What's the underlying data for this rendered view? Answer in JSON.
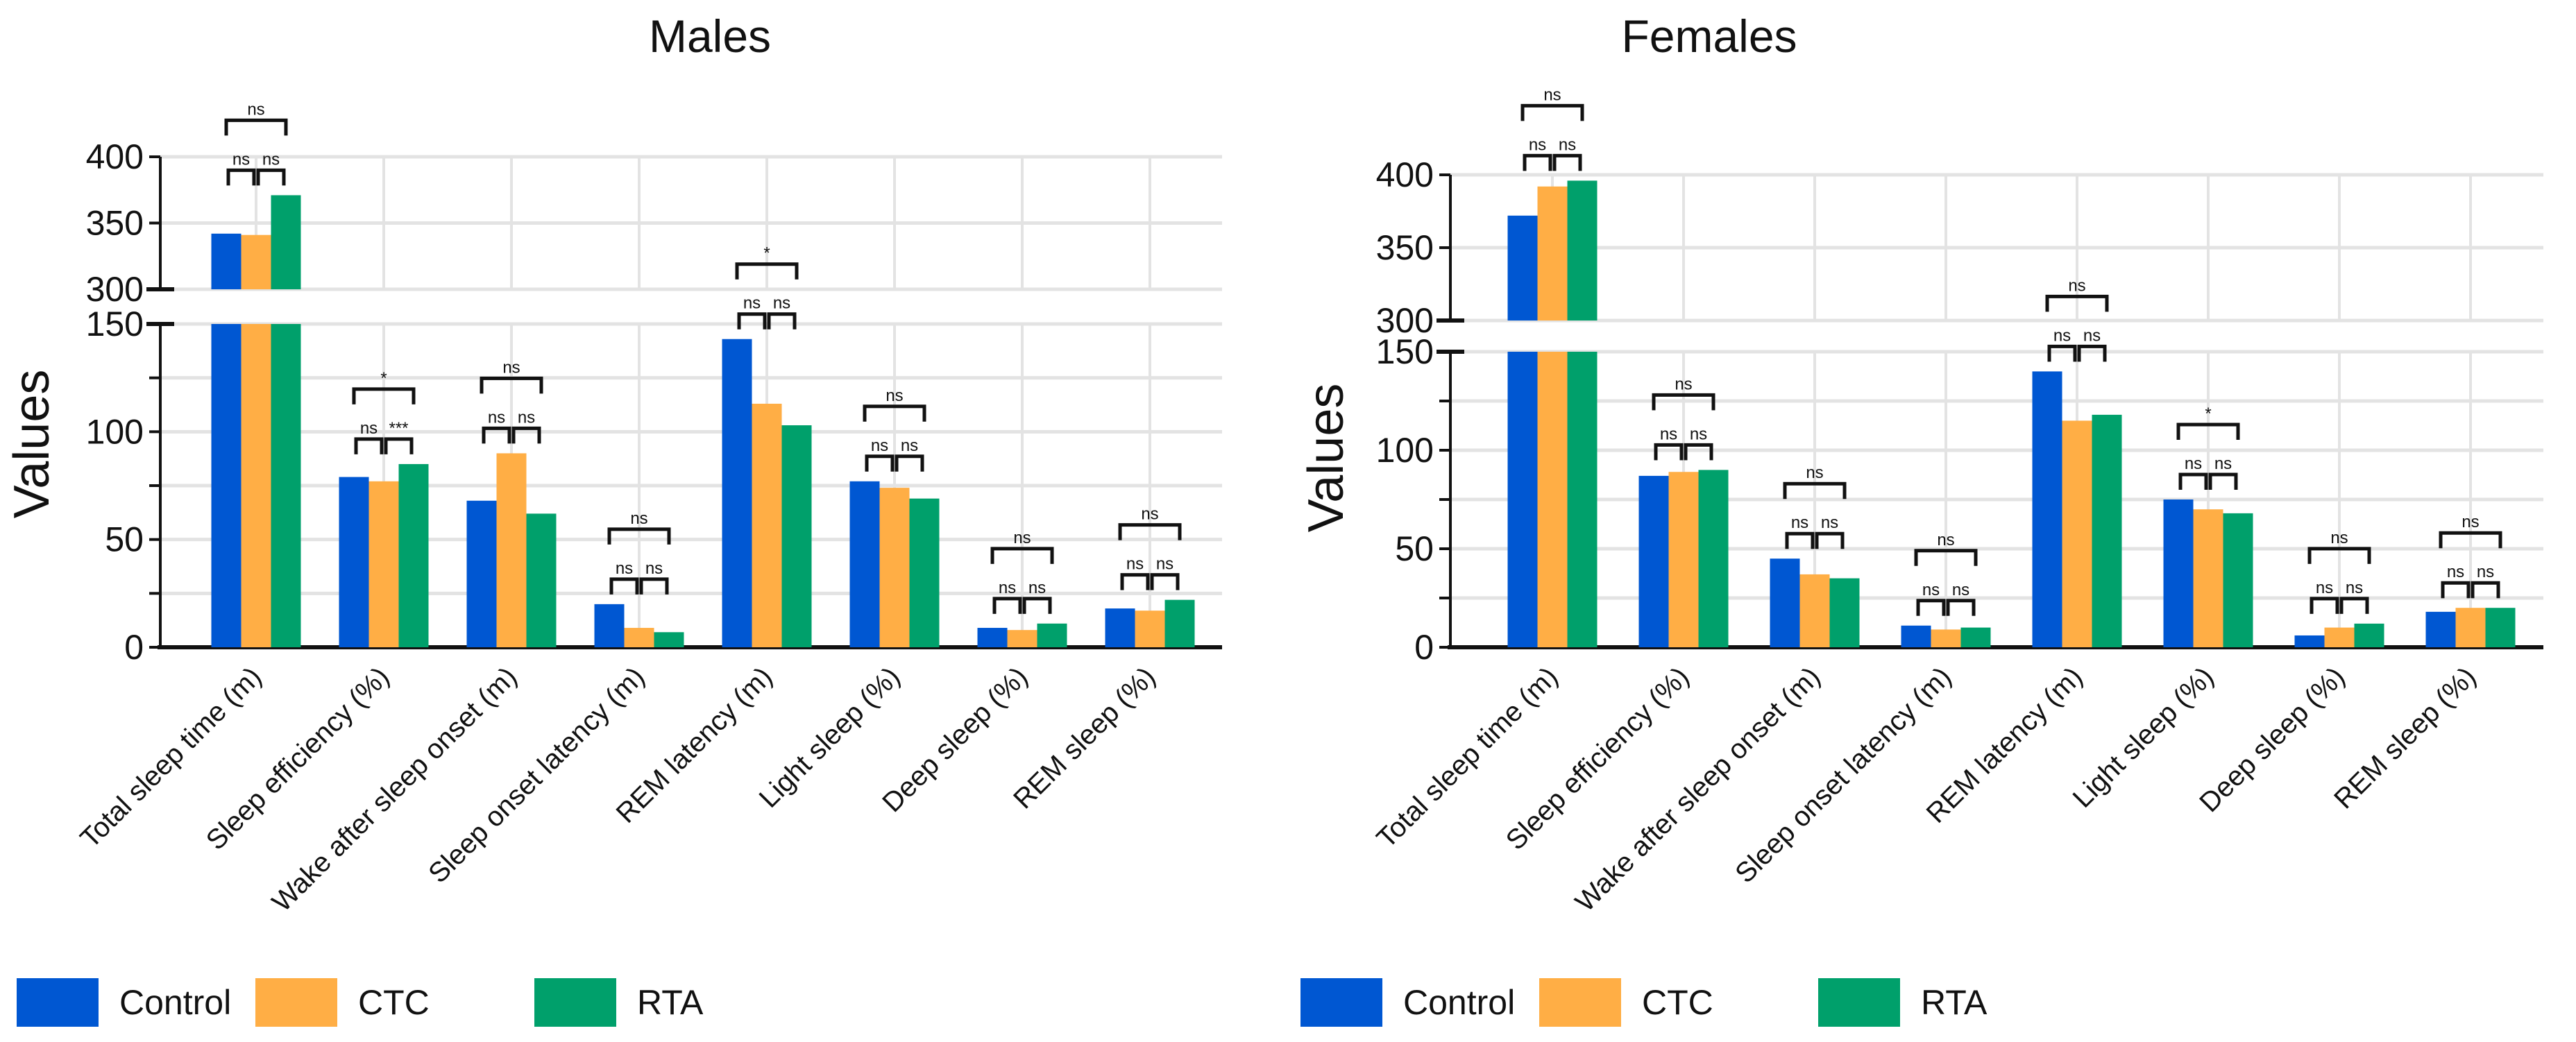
{
  "colors": {
    "Control": "#0057D2",
    "CTC": "#FFAE45",
    "RTA": "#00A06B",
    "grid": "#e3e3e3",
    "axis": "#111111"
  },
  "legend": [
    {
      "label": "Control",
      "color": "#0057D2"
    },
    {
      "label": "CTC",
      "color": "#FFAE45"
    },
    {
      "label": "RTA",
      "color": "#00A06B"
    }
  ],
  "chart_data": [
    {
      "type": "bar",
      "title": "Males",
      "ylabel": "Values",
      "xlabel": "",
      "broken_axis": {
        "lower": [
          0,
          150
        ],
        "upper": [
          300,
          400
        ]
      },
      "yticks_lower": [
        0,
        50,
        100,
        150
      ],
      "yticks_upper": [
        300,
        350,
        400
      ],
      "grid": true,
      "categories": [
        "Total sleep time (m)",
        "Sleep efficiency (%)",
        "Wake after sleep onset (m)",
        "Sleep onset latency (m)",
        "REM latency (m)",
        "Light sleep (%)",
        "Deep sleep (%)",
        "REM sleep (%)"
      ],
      "series": [
        {
          "name": "Control",
          "values": [
            342,
            79,
            68,
            20,
            143,
            77,
            9,
            18
          ]
        },
        {
          "name": "CTC",
          "values": [
            341,
            77,
            90,
            9,
            113,
            74,
            8,
            17
          ]
        },
        {
          "name": "RTA",
          "values": [
            371,
            85,
            62,
            7,
            103,
            69,
            11,
            22
          ]
        }
      ],
      "significance": [
        {
          "control_vs_ctc": "ns",
          "ctc_vs_rta": "ns",
          "control_vs_rta": "ns"
        },
        {
          "control_vs_ctc": "ns",
          "ctc_vs_rta": "***",
          "control_vs_rta": "*"
        },
        {
          "control_vs_ctc": "ns",
          "ctc_vs_rta": "ns",
          "control_vs_rta": "ns"
        },
        {
          "control_vs_ctc": "ns",
          "ctc_vs_rta": "ns",
          "control_vs_rta": "ns"
        },
        {
          "control_vs_ctc": "ns",
          "ctc_vs_rta": "ns",
          "control_vs_rta": "*"
        },
        {
          "control_vs_ctc": "ns",
          "ctc_vs_rta": "ns",
          "control_vs_rta": "ns"
        },
        {
          "control_vs_ctc": "ns",
          "ctc_vs_rta": "ns",
          "control_vs_rta": "ns"
        },
        {
          "control_vs_ctc": "ns",
          "ctc_vs_rta": "ns",
          "control_vs_rta": "ns"
        }
      ]
    },
    {
      "type": "bar",
      "title": "Females",
      "ylabel": "Values",
      "xlabel": "",
      "broken_axis": {
        "lower": [
          0,
          150
        ],
        "upper": [
          300,
          400
        ]
      },
      "yticks_lower": [
        0,
        50,
        100,
        150
      ],
      "yticks_upper": [
        300,
        350,
        400
      ],
      "grid": true,
      "categories": [
        "Total sleep time (m)",
        "Sleep efficiency (%)",
        "Wake after sleep onset (m)",
        "Sleep onset latency (m)",
        "REM latency (m)",
        "Light sleep (%)",
        "Deep sleep (%)",
        "REM sleep (%)"
      ],
      "series": [
        {
          "name": "Control",
          "values": [
            372,
            87,
            45,
            11,
            140,
            75,
            6,
            18
          ]
        },
        {
          "name": "CTC",
          "values": [
            392,
            89,
            37,
            9,
            115,
            70,
            10,
            20
          ]
        },
        {
          "name": "RTA",
          "values": [
            396,
            90,
            35,
            10,
            118,
            68,
            12,
            20
          ]
        }
      ],
      "significance": [
        {
          "control_vs_ctc": "ns",
          "ctc_vs_rta": "ns",
          "control_vs_rta": "ns"
        },
        {
          "control_vs_ctc": "ns",
          "ctc_vs_rta": "ns",
          "control_vs_rta": "ns"
        },
        {
          "control_vs_ctc": "ns",
          "ctc_vs_rta": "ns",
          "control_vs_rta": "ns"
        },
        {
          "control_vs_ctc": "ns",
          "ctc_vs_rta": "ns",
          "control_vs_rta": "ns"
        },
        {
          "control_vs_ctc": "ns",
          "ctc_vs_rta": "ns",
          "control_vs_rta": "ns"
        },
        {
          "control_vs_ctc": "ns",
          "ctc_vs_rta": "ns",
          "control_vs_rta": "*"
        },
        {
          "control_vs_ctc": "ns",
          "ctc_vs_rta": "ns",
          "control_vs_rta": "ns"
        },
        {
          "control_vs_ctc": "ns",
          "ctc_vs_rta": "ns",
          "control_vs_rta": "ns"
        }
      ]
    }
  ]
}
